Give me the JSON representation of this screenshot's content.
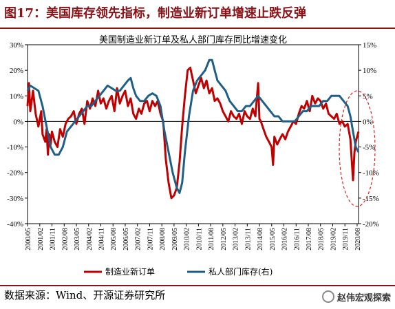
{
  "figure": {
    "title": "图17：美国库存领先指标，制造业新订单增速止跌反弹",
    "source": "数据来源：Wind、开源证券研究所",
    "watermark": "赵伟宏观探索"
  },
  "colors": {
    "red": "#c00000",
    "blue": "#1f5f87",
    "axis": "#000000",
    "ellipse": "#e02020"
  },
  "chart_data": {
    "type": "line",
    "title": "美国制造业新订单及私人部门库存同比增速变化",
    "x_tick_labels": [
      "2000/05",
      "2001/02",
      "2001/11",
      "2002/08",
      "2003/05",
      "2004/02",
      "2004/11",
      "2005/08",
      "2006/05",
      "2007/02",
      "2007/11",
      "2008/08",
      "2009/05",
      "2010/02",
      "2010/11",
      "2011/08",
      "2012/05",
      "2013/02",
      "2013/11",
      "2014/08",
      "2015/05",
      "2016/02",
      "2016/11",
      "2017/08",
      "2018/05",
      "2019/02",
      "2019/11",
      "2020/08"
    ],
    "xlim": [
      2000.33,
      2020.67
    ],
    "y_left": {
      "ticks": [
        "30%",
        "20%",
        "10%",
        "0%",
        "-10%",
        "-20%",
        "-30%",
        "-40%"
      ],
      "range": [
        -40,
        30
      ]
    },
    "y_right": {
      "ticks": [
        "15%",
        "10%",
        "5%",
        "0%",
        "-5%",
        "-10%",
        "-15%",
        "-20%"
      ],
      "range": [
        -20,
        15
      ]
    },
    "legend_position": "bottom",
    "series": [
      {
        "name": "制造业新订单",
        "axis": "left",
        "color": "#c00000",
        "points": [
          [
            2000.33,
            6
          ],
          [
            2000.42,
            15
          ],
          [
            2000.5,
            4
          ],
          [
            2000.67,
            12
          ],
          [
            2000.83,
            3
          ],
          [
            2001.0,
            -2
          ],
          [
            2001.17,
            4
          ],
          [
            2001.25,
            -5
          ],
          [
            2001.42,
            -8
          ],
          [
            2001.5,
            -3
          ],
          [
            2001.58,
            -13
          ],
          [
            2001.67,
            -5
          ],
          [
            2001.75,
            -9
          ],
          [
            2001.83,
            -4
          ],
          [
            2002.0,
            -8
          ],
          [
            2002.17,
            -10
          ],
          [
            2002.33,
            -3
          ],
          [
            2002.5,
            -6
          ],
          [
            2002.67,
            -1
          ],
          [
            2002.83,
            1
          ],
          [
            2003.0,
            2
          ],
          [
            2003.17,
            4
          ],
          [
            2003.33,
            -1
          ],
          [
            2003.5,
            3
          ],
          [
            2003.67,
            5
          ],
          [
            2003.83,
            -1
          ],
          [
            2004.0,
            8
          ],
          [
            2004.17,
            5
          ],
          [
            2004.33,
            9
          ],
          [
            2004.5,
            6
          ],
          [
            2004.67,
            12
          ],
          [
            2004.83,
            7
          ],
          [
            2005.0,
            9
          ],
          [
            2005.17,
            5
          ],
          [
            2005.33,
            8
          ],
          [
            2005.5,
            10
          ],
          [
            2005.67,
            4
          ],
          [
            2005.83,
            13
          ],
          [
            2006.0,
            7
          ],
          [
            2006.17,
            10
          ],
          [
            2006.33,
            12
          ],
          [
            2006.5,
            6
          ],
          [
            2006.67,
            9
          ],
          [
            2006.83,
            3
          ],
          [
            2007.0,
            1
          ],
          [
            2007.17,
            5
          ],
          [
            2007.33,
            3
          ],
          [
            2007.5,
            7
          ],
          [
            2007.67,
            8
          ],
          [
            2007.83,
            4
          ],
          [
            2008.0,
            8
          ],
          [
            2008.17,
            6
          ],
          [
            2008.33,
            8
          ],
          [
            2008.5,
            3
          ],
          [
            2008.67,
            0
          ],
          [
            2008.83,
            -15
          ],
          [
            2009.0,
            -24
          ],
          [
            2009.17,
            -30
          ],
          [
            2009.33,
            -29
          ],
          [
            2009.5,
            -26
          ],
          [
            2009.67,
            -16
          ],
          [
            2009.83,
            -2
          ],
          [
            2010.0,
            10
          ],
          [
            2010.17,
            20
          ],
          [
            2010.33,
            21
          ],
          [
            2010.5,
            16
          ],
          [
            2010.67,
            11
          ],
          [
            2010.83,
            14
          ],
          [
            2011.0,
            17
          ],
          [
            2011.17,
            13
          ],
          [
            2011.33,
            16
          ],
          [
            2011.5,
            11
          ],
          [
            2011.67,
            13
          ],
          [
            2011.83,
            8
          ],
          [
            2012.0,
            9
          ],
          [
            2012.17,
            7
          ],
          [
            2012.33,
            4
          ],
          [
            2012.5,
            2
          ],
          [
            2012.67,
            0
          ],
          [
            2012.83,
            4
          ],
          [
            2013.0,
            2
          ],
          [
            2013.17,
            1
          ],
          [
            2013.33,
            3
          ],
          [
            2013.5,
            -1
          ],
          [
            2013.67,
            4
          ],
          [
            2013.83,
            2
          ],
          [
            2014.0,
            1
          ],
          [
            2014.17,
            5
          ],
          [
            2014.33,
            2
          ],
          [
            2014.5,
            15
          ],
          [
            2014.58,
            1
          ],
          [
            2014.67,
            0
          ],
          [
            2014.83,
            -3
          ],
          [
            2015.0,
            -6
          ],
          [
            2015.17,
            -8
          ],
          [
            2015.33,
            -10
          ],
          [
            2015.42,
            -17
          ],
          [
            2015.5,
            -6
          ],
          [
            2015.67,
            -9
          ],
          [
            2015.83,
            -7
          ],
          [
            2016.0,
            -5
          ],
          [
            2016.17,
            -7
          ],
          [
            2016.33,
            -4
          ],
          [
            2016.5,
            -2
          ],
          [
            2016.67,
            0
          ],
          [
            2016.83,
            -1
          ],
          [
            2017.0,
            3
          ],
          [
            2017.17,
            6
          ],
          [
            2017.33,
            5
          ],
          [
            2017.5,
            8
          ],
          [
            2017.67,
            4
          ],
          [
            2017.83,
            10
          ],
          [
            2018.0,
            7
          ],
          [
            2018.17,
            9
          ],
          [
            2018.33,
            8
          ],
          [
            2018.5,
            5
          ],
          [
            2018.67,
            7
          ],
          [
            2018.83,
            3
          ],
          [
            2019.0,
            2
          ],
          [
            2019.17,
            1
          ],
          [
            2019.33,
            3
          ],
          [
            2019.5,
            -1
          ],
          [
            2019.67,
            0
          ],
          [
            2019.83,
            -2
          ],
          [
            2020.0,
            -1
          ],
          [
            2020.17,
            -7
          ],
          [
            2020.33,
            -23
          ],
          [
            2020.42,
            -12
          ],
          [
            2020.5,
            -8
          ],
          [
            2020.58,
            -6
          ],
          [
            2020.67,
            -4
          ]
        ]
      },
      {
        "name": "私人部门库存(右)",
        "axis": "right",
        "color": "#1f5f87",
        "points": [
          [
            2000.33,
            6
          ],
          [
            2000.5,
            7
          ],
          [
            2000.75,
            6.5
          ],
          [
            2001.0,
            6
          ],
          [
            2001.25,
            3
          ],
          [
            2001.5,
            -1
          ],
          [
            2001.75,
            -5
          ],
          [
            2002.0,
            -6.5
          ],
          [
            2002.25,
            -6.5
          ],
          [
            2002.5,
            -5
          ],
          [
            2002.75,
            -2
          ],
          [
            2003.0,
            -1
          ],
          [
            2003.25,
            0
          ],
          [
            2003.5,
            1
          ],
          [
            2003.75,
            2
          ],
          [
            2004.0,
            3
          ],
          [
            2004.25,
            3
          ],
          [
            2004.5,
            4
          ],
          [
            2004.75,
            5
          ],
          [
            2005.0,
            6
          ],
          [
            2005.25,
            7
          ],
          [
            2005.5,
            6.5
          ],
          [
            2005.75,
            6
          ],
          [
            2006.0,
            6
          ],
          [
            2006.25,
            7
          ],
          [
            2006.5,
            8
          ],
          [
            2006.67,
            8.5
          ],
          [
            2006.83,
            6.5
          ],
          [
            2007.0,
            5
          ],
          [
            2007.25,
            4
          ],
          [
            2007.5,
            4
          ],
          [
            2007.75,
            5
          ],
          [
            2008.0,
            5.5
          ],
          [
            2008.25,
            5
          ],
          [
            2008.5,
            3
          ],
          [
            2008.75,
            -2
          ],
          [
            2009.0,
            -6
          ],
          [
            2009.25,
            -10
          ],
          [
            2009.5,
            -13
          ],
          [
            2009.67,
            -14
          ],
          [
            2009.83,
            -12
          ],
          [
            2010.0,
            -6
          ],
          [
            2010.25,
            1
          ],
          [
            2010.5,
            6
          ],
          [
            2010.75,
            8
          ],
          [
            2011.0,
            9
          ],
          [
            2011.25,
            10
          ],
          [
            2011.5,
            12
          ],
          [
            2011.67,
            12
          ],
          [
            2011.83,
            10
          ],
          [
            2012.0,
            8
          ],
          [
            2012.25,
            7
          ],
          [
            2012.5,
            6
          ],
          [
            2012.75,
            4
          ],
          [
            2013.0,
            3
          ],
          [
            2013.25,
            2
          ],
          [
            2013.5,
            2
          ],
          [
            2013.75,
            3
          ],
          [
            2014.0,
            3
          ],
          [
            2014.25,
            4
          ],
          [
            2014.5,
            5
          ],
          [
            2014.75,
            4
          ],
          [
            2015.0,
            3
          ],
          [
            2015.25,
            2
          ],
          [
            2015.5,
            1
          ],
          [
            2015.75,
            1
          ],
          [
            2016.0,
            0
          ],
          [
            2016.25,
            0
          ],
          [
            2016.5,
            0
          ],
          [
            2016.75,
            0
          ],
          [
            2017.0,
            1
          ],
          [
            2017.25,
            2
          ],
          [
            2017.5,
            2
          ],
          [
            2017.75,
            3
          ],
          [
            2018.0,
            3
          ],
          [
            2018.25,
            3
          ],
          [
            2018.5,
            4
          ],
          [
            2018.75,
            4
          ],
          [
            2019.0,
            5
          ],
          [
            2019.25,
            5
          ],
          [
            2019.5,
            5
          ],
          [
            2019.75,
            4
          ],
          [
            2020.0,
            3
          ],
          [
            2020.17,
            1
          ],
          [
            2020.33,
            -2
          ],
          [
            2020.5,
            -5
          ],
          [
            2020.67,
            -6
          ]
        ]
      }
    ],
    "annotation": "ellipse-highlight-2019-2020"
  }
}
